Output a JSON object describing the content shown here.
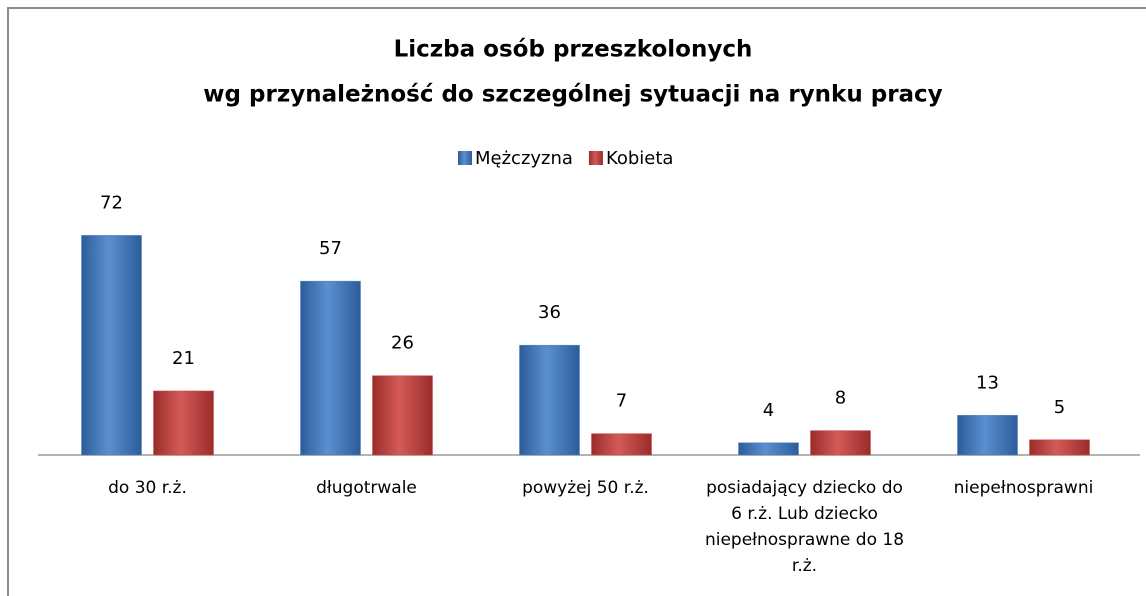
{
  "chart_data": {
    "type": "bar",
    "title": [
      "Liczba osób przeszkolonych",
      "wg przynależność do szczególnej sytuacji na rynku pracy"
    ],
    "categories": [
      "do 30 r.ż.",
      "długotrwale",
      "powyżej 50 r.ż.",
      "posiadający dziecko do 6 r.ż. Lub dziecko niepełnosprawne do 18 r.ż.",
      "niepełnosprawni"
    ],
    "series": [
      {
        "name": "Mężczyzna",
        "color": "#4f81bd",
        "values": [
          72,
          57,
          36,
          4,
          13
        ]
      },
      {
        "name": "Kobieta",
        "color": "#c0504d",
        "values": [
          21,
          26,
          7,
          8,
          5
        ]
      }
    ],
    "ylim": [
      0,
      80
    ],
    "legend": "top"
  }
}
